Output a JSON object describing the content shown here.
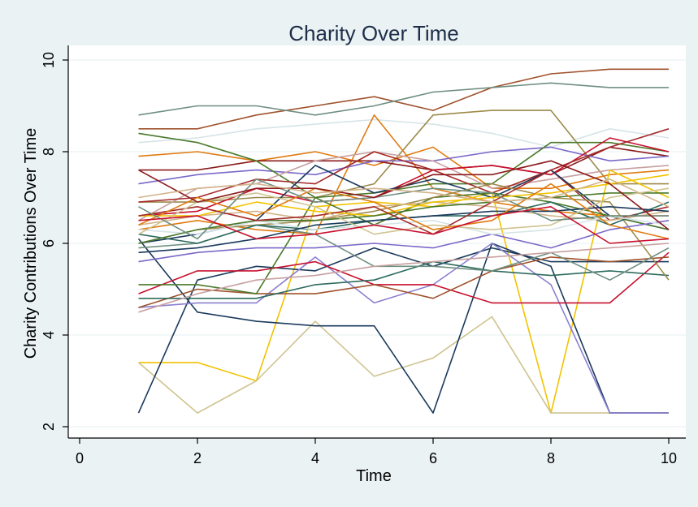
{
  "chart_data": {
    "type": "line",
    "title": "Charity Over Time",
    "xlabel": "Time",
    "ylabel": "Charity Contributions Over Time",
    "xlim": [
      0,
      10
    ],
    "ylim": [
      2,
      10
    ],
    "xticks": [
      "0",
      "2",
      "4",
      "6",
      "8",
      "10"
    ],
    "yticks": [
      "2",
      "4",
      "6",
      "8",
      "10"
    ],
    "grid": true,
    "legend": "none",
    "x": [
      1,
      2,
      3,
      4,
      5,
      6,
      7,
      8,
      9,
      10
    ],
    "series": [
      {
        "color": "#a0522d",
        "values": [
          8.5,
          8.5,
          8.8,
          9.0,
          9.2,
          8.9,
          9.4,
          9.7,
          9.8,
          9.8
        ]
      },
      {
        "color": "#6e8f80",
        "values": [
          8.8,
          9.0,
          9.0,
          8.8,
          9.0,
          9.3,
          9.4,
          9.5,
          9.4,
          9.4
        ]
      },
      {
        "color": "#d6e4e8",
        "values": [
          8.2,
          8.3,
          8.5,
          8.6,
          8.7,
          8.6,
          8.4,
          8.1,
          8.5,
          8.3
        ]
      },
      {
        "color": "#9c8a4a",
        "values": [
          6.9,
          6.9,
          7.0,
          7.0,
          7.3,
          8.8,
          8.9,
          8.9,
          7.3,
          7.3
        ]
      },
      {
        "color": "#e07b10",
        "values": [
          7.9,
          8.0,
          7.8,
          8.0,
          7.7,
          8.1,
          7.2,
          7.2,
          7.5,
          7.6
        ]
      },
      {
        "color": "#e07b10",
        "values": [
          6.3,
          6.5,
          6.3,
          6.2,
          8.8,
          7.2,
          6.9,
          6.7,
          6.6,
          6.6
        ]
      },
      {
        "color": "#8b1a1a",
        "values": [
          7.6,
          7.6,
          7.8,
          7.8,
          7.8,
          7.6,
          7.7,
          7.5,
          8.1,
          7.9
        ]
      },
      {
        "color": "#7b68c8",
        "values": [
          7.3,
          7.5,
          7.6,
          7.5,
          7.8,
          7.8,
          8.0,
          8.1,
          7.8,
          7.9
        ]
      },
      {
        "color": "#4b7a2b",
        "values": [
          8.4,
          8.2,
          7.8,
          7.0,
          7.1,
          7.3,
          7.3,
          8.2,
          8.2,
          8.0
        ]
      },
      {
        "color": "#c8a0a0",
        "values": [
          6.5,
          7.2,
          7.3,
          7.8,
          8.0,
          7.8,
          7.2,
          7.4,
          7.6,
          7.7
        ]
      },
      {
        "color": "#c8102e",
        "values": [
          6.6,
          6.7,
          7.2,
          6.9,
          7.0,
          7.6,
          7.7,
          7.5,
          8.3,
          8.0
        ]
      },
      {
        "color": "#a52a2a",
        "values": [
          6.9,
          7.0,
          7.4,
          7.3,
          8.0,
          7.6,
          7.1,
          7.6,
          6.5,
          6.8
        ]
      },
      {
        "color": "#f2c300",
        "values": [
          3.4,
          3.4,
          3.0,
          6.8,
          6.9,
          6.8,
          7.1,
          2.3,
          7.6,
          7.0
        ]
      },
      {
        "color": "#cfc490",
        "values": [
          3.4,
          2.3,
          3.0,
          4.3,
          3.1,
          3.5,
          4.4,
          2.3,
          2.3,
          2.3
        ]
      },
      {
        "color": "#1a3a5c",
        "values": [
          2.3,
          5.2,
          5.5,
          5.4,
          5.9,
          5.5,
          5.9,
          5.6,
          5.6,
          5.6
        ]
      },
      {
        "color": "#1a3a5c",
        "values": [
          6.1,
          4.5,
          4.3,
          4.2,
          4.2,
          2.3,
          6.0,
          5.5,
          2.3,
          2.3
        ]
      },
      {
        "color": "#1a3a5c",
        "values": [
          6.0,
          6.2,
          6.5,
          7.7,
          7.1,
          7.4,
          7.0,
          7.6,
          6.6,
          6.3
        ]
      },
      {
        "color": "#8a80d0",
        "values": [
          4.6,
          4.7,
          4.7,
          5.7,
          4.7,
          5.1,
          6.0,
          5.1,
          2.3,
          2.3
        ]
      },
      {
        "color": "#c8102e",
        "values": [
          4.9,
          5.4,
          5.4,
          5.6,
          5.1,
          5.1,
          4.7,
          4.7,
          4.7,
          5.8
        ]
      },
      {
        "color": "#a0522d",
        "values": [
          4.6,
          5.0,
          4.9,
          4.9,
          5.1,
          4.8,
          5.4,
          5.7,
          5.6,
          5.7
        ]
      },
      {
        "color": "#2e6b5e",
        "values": [
          4.8,
          4.8,
          4.8,
          5.1,
          5.2,
          5.6,
          5.4,
          5.3,
          5.4,
          5.3
        ]
      },
      {
        "color": "#4b7a2b",
        "values": [
          5.1,
          5.1,
          4.9,
          7.0,
          6.4,
          7.0,
          7.1,
          6.9,
          6.6,
          6.3
        ]
      },
      {
        "color": "#6e8f80",
        "values": [
          5.9,
          6.0,
          6.4,
          6.2,
          5.5,
          5.5,
          5.4,
          5.8,
          5.2,
          5.9
        ]
      },
      {
        "color": "#9c8a4a",
        "values": [
          6.0,
          6.3,
          6.4,
          6.5,
          6.7,
          7.0,
          7.3,
          7.0,
          6.9,
          5.2
        ]
      },
      {
        "color": "#c8a0a0",
        "values": [
          4.5,
          4.9,
          5.2,
          5.3,
          5.5,
          5.6,
          5.7,
          5.8,
          5.9,
          6.0
        ]
      },
      {
        "color": "#7b68c8",
        "values": [
          5.6,
          5.8,
          5.9,
          5.9,
          6.0,
          5.9,
          6.2,
          5.9,
          6.3,
          6.5
        ]
      },
      {
        "color": "#2e6b5e",
        "values": [
          6.2,
          6.0,
          6.4,
          6.3,
          6.5,
          6.6,
          6.6,
          6.9,
          6.4,
          6.9
        ]
      },
      {
        "color": "#d2b48c",
        "values": [
          6.4,
          6.6,
          6.7,
          6.5,
          6.8,
          6.9,
          6.8,
          6.6,
          6.5,
          6.7
        ]
      },
      {
        "color": "#f2c300",
        "values": [
          6.6,
          6.6,
          6.9,
          6.7,
          6.6,
          6.9,
          7.0,
          7.1,
          7.3,
          7.5
        ]
      },
      {
        "color": "#d6e4e8",
        "values": [
          6.3,
          6.2,
          6.5,
          6.3,
          6.4,
          6.5,
          6.2,
          6.3,
          6.6,
          6.4
        ]
      },
      {
        "color": "#1a3a5c",
        "values": [
          5.8,
          5.9,
          6.1,
          6.4,
          6.5,
          6.6,
          6.7,
          6.7,
          6.8,
          6.7
        ]
      },
      {
        "color": "#4b7a2b",
        "values": [
          6.0,
          6.3,
          6.5,
          6.5,
          6.6,
          6.8,
          6.9,
          7.0,
          7.1,
          7.1
        ]
      },
      {
        "color": "#a52a2a",
        "values": [
          6.6,
          6.8,
          6.5,
          6.6,
          6.8,
          6.2,
          6.9,
          7.6,
          8.1,
          8.5
        ]
      },
      {
        "color": "#cfc490",
        "values": [
          6.2,
          6.9,
          7.1,
          6.8,
          6.2,
          6.4,
          6.3,
          6.4,
          7.0,
          7.2
        ]
      },
      {
        "color": "#e07b10",
        "values": [
          6.4,
          7.0,
          6.6,
          7.2,
          6.9,
          6.3,
          6.5,
          7.3,
          6.4,
          6.1
        ]
      },
      {
        "color": "#6e8f80",
        "values": [
          6.8,
          6.1,
          7.4,
          6.9,
          7.0,
          7.2,
          7.1,
          6.5,
          6.6,
          6.6
        ]
      },
      {
        "color": "#c8102e",
        "values": [
          6.5,
          6.6,
          6.1,
          6.2,
          6.4,
          6.2,
          6.6,
          6.8,
          6.0,
          6.1
        ]
      },
      {
        "color": "#8b1a1a",
        "values": [
          7.6,
          6.9,
          7.2,
          7.2,
          7.0,
          7.5,
          7.5,
          7.8,
          7.3,
          6.3
        ]
      },
      {
        "color": "#d2b48c",
        "values": [
          7.0,
          7.2,
          7.3,
          7.1,
          7.2,
          7.1,
          6.9,
          7.0,
          7.4,
          6.8
        ]
      }
    ]
  }
}
